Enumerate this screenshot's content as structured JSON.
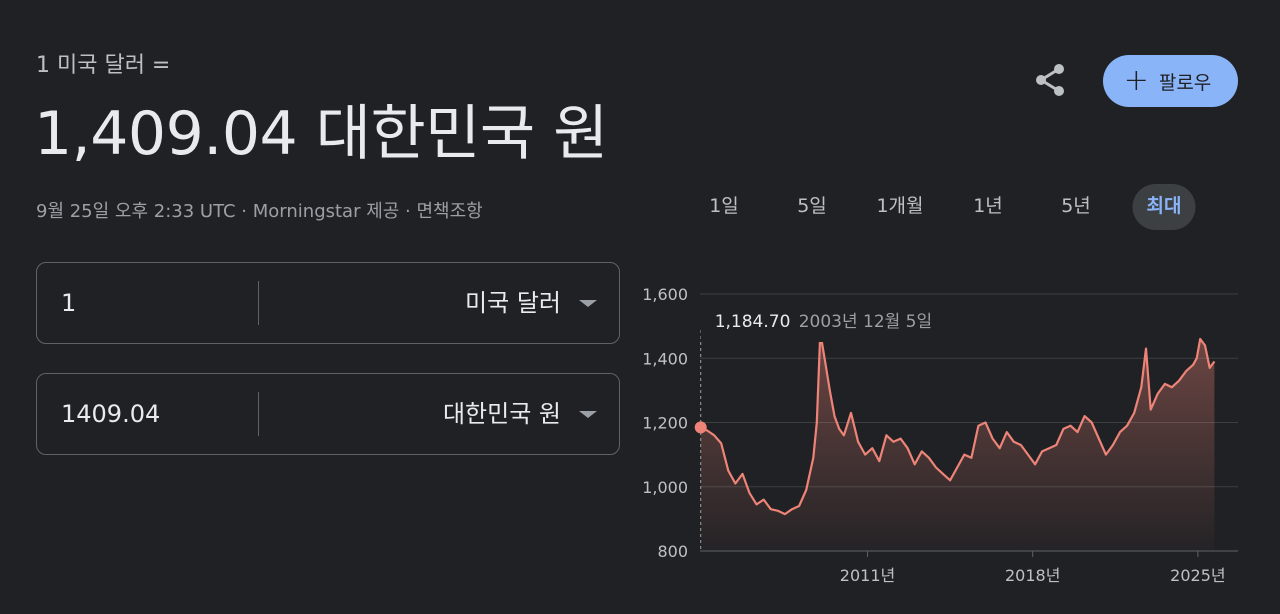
{
  "header": {
    "subtitle": "1 미국 달러 =",
    "rate": "1,409.04 대한민국 원",
    "meta_time": "9월 25일 오후 2:33 UTC · Morningstar 제공 · ",
    "disclaimer": "면책조항"
  },
  "actions": {
    "share_icon": "share-icon",
    "follow_label": "팔로우",
    "follow_color": "#8ab4f8"
  },
  "converter": {
    "from": {
      "amount": "1",
      "currency": "미국 달러"
    },
    "to": {
      "amount": "1409.04",
      "currency": "대한민국 원"
    }
  },
  "tabs": [
    {
      "label": "1일",
      "active": false
    },
    {
      "label": "5일",
      "active": false
    },
    {
      "label": "1개월",
      "active": false
    },
    {
      "label": "1년",
      "active": false
    },
    {
      "label": "5년",
      "active": false
    },
    {
      "label": "최대",
      "active": true
    }
  ],
  "chart_data": {
    "type": "area",
    "title": "",
    "xlabel": "",
    "ylabel": "",
    "ylim": [
      800,
      1600
    ],
    "y_ticks": [
      800,
      1000,
      1200,
      1400,
      1600
    ],
    "y_tick_labels": [
      "800",
      "1,000",
      "1,200",
      "1,400",
      "1,600"
    ],
    "x_ticks": [
      2011,
      2018,
      2025
    ],
    "x_tick_labels": [
      "2011년",
      "2018년",
      "2025년"
    ],
    "xlim": [
      2003.9,
      2026.7
    ],
    "line_color": "#ee8477",
    "grid": true,
    "tooltip": {
      "value": "1,184.70",
      "date": "2003년 12월 5일",
      "x": 2003.93,
      "y": 1184.7
    },
    "series": [
      {
        "x": [
          2003.93,
          2004.2,
          2004.5,
          2004.8,
          2005.1,
          2005.4,
          2005.7,
          2006.0,
          2006.3,
          2006.6,
          2006.9,
          2007.2,
          2007.5,
          2007.8,
          2008.1,
          2008.4,
          2008.7,
          2008.85,
          2009.0,
          2009.2,
          2009.4,
          2009.6,
          2009.8,
          2010.0,
          2010.3,
          2010.6,
          2010.9,
          2011.2,
          2011.5,
          2011.8,
          2012.1,
          2012.4,
          2012.7,
          2013.0,
          2013.3,
          2013.6,
          2013.9,
          2014.2,
          2014.5,
          2014.8,
          2015.1,
          2015.4,
          2015.7,
          2016.0,
          2016.3,
          2016.6,
          2016.9,
          2017.2,
          2017.5,
          2017.8,
          2018.1,
          2018.4,
          2018.7,
          2019.0,
          2019.3,
          2019.6,
          2019.9,
          2020.2,
          2020.5,
          2020.8,
          2021.1,
          2021.4,
          2021.7,
          2022.0,
          2022.3,
          2022.6,
          2022.8,
          2023.0,
          2023.3,
          2023.6,
          2023.9,
          2024.2,
          2024.5,
          2024.8,
          2024.95,
          2025.1,
          2025.3,
          2025.5,
          2025.7
        ],
        "y": [
          1184.7,
          1175,
          1160,
          1135,
          1050,
          1010,
          1040,
          980,
          945,
          960,
          930,
          925,
          915,
          930,
          940,
          990,
          1090,
          1200,
          1480,
          1390,
          1300,
          1220,
          1180,
          1160,
          1230,
          1140,
          1100,
          1120,
          1080,
          1160,
          1140,
          1150,
          1120,
          1070,
          1110,
          1090,
          1060,
          1040,
          1020,
          1060,
          1100,
          1090,
          1190,
          1200,
          1150,
          1120,
          1170,
          1140,
          1130,
          1100,
          1070,
          1110,
          1120,
          1130,
          1180,
          1190,
          1170,
          1220,
          1200,
          1150,
          1100,
          1130,
          1170,
          1190,
          1230,
          1310,
          1430,
          1240,
          1290,
          1320,
          1310,
          1330,
          1360,
          1380,
          1400,
          1460,
          1440,
          1370,
          1390
        ]
      }
    ]
  }
}
